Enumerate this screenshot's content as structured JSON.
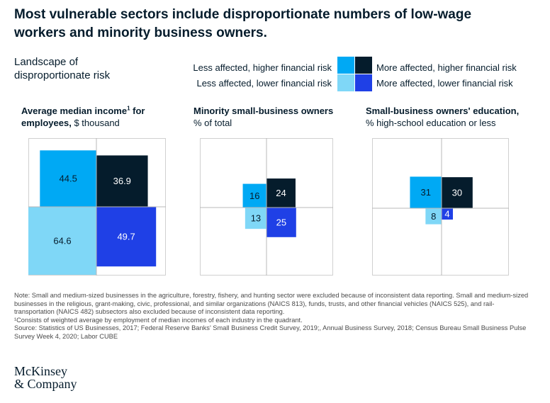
{
  "title": "Most vulnerable sectors include disproportionate numbers of low-wage workers and minority business owners.",
  "landscape_label": "Landscape of disproportionate risk",
  "legend": [
    {
      "label": "Less affected, higher financial risk",
      "color": "#00a9f4"
    },
    {
      "label": "More affected, higher financial risk",
      "color": "#051c2c"
    },
    {
      "label": "Less affected, lower financial risk",
      "color": "#7fd7f7"
    },
    {
      "label": "More affected, lower financial risk",
      "color": "#1f40e6"
    }
  ],
  "panels": [
    {
      "title_bold": "Average median income",
      "footnote_mark": "1",
      "title_bold_tail": " for employees,",
      "title_rest": " $ thousand"
    },
    {
      "title_bold": "Minority small-business owners",
      "subtitle": "% of total"
    },
    {
      "title_bold": "Small-business owners' education,",
      "subtitle": "% high-school education or less"
    }
  ],
  "chart_data": [
    {
      "type": "quadrant",
      "title": "Average median income¹ for employees, $ thousand",
      "quadrants": [
        {
          "name": "Less affected, higher financial risk",
          "value": 44.5,
          "color": "#00a9f4"
        },
        {
          "name": "More affected, higher financial risk",
          "value": 36.9,
          "color": "#051c2c"
        },
        {
          "name": "Less affected, lower financial risk",
          "value": 64.6,
          "color": "#7fd7f7"
        },
        {
          "name": "More affected, lower financial risk",
          "value": 49.7,
          "color": "#1f40e6"
        }
      ]
    },
    {
      "type": "quadrant",
      "title": "Minority small-business owners, % of total",
      "quadrants": [
        {
          "name": "Less affected, higher financial risk",
          "value": 16,
          "color": "#00a9f4"
        },
        {
          "name": "More affected, higher financial risk",
          "value": 24,
          "color": "#051c2c"
        },
        {
          "name": "Less affected, lower financial risk",
          "value": 13,
          "color": "#7fd7f7"
        },
        {
          "name": "More affected, lower financial risk",
          "value": 25,
          "color": "#1f40e6"
        }
      ]
    },
    {
      "type": "quadrant",
      "title": "Small-business owners' education, % high-school education or less",
      "quadrants": [
        {
          "name": "Less affected, higher financial risk",
          "value": 31,
          "color": "#00a9f4"
        },
        {
          "name": "More affected, higher financial risk",
          "value": 30,
          "color": "#051c2c"
        },
        {
          "name": "Less affected, lower financial risk",
          "value": 8,
          "color": "#7fd7f7"
        },
        {
          "name": "More affected, lower financial risk",
          "value": 4,
          "color": "#1f40e6"
        }
      ]
    }
  ],
  "notes": {
    "note": "Note: Small and medium-sized businesses in the agriculture, forestry, fishery, and hunting sector were excluded because of inconsistent data reporting. Small and medium-sized businesses in the religious, grant-making, civic, professional, and similar organizations (NAICS 813), funds, trusts, and other financial vehicles (NAICS 525), and rail-transportation (NAICS 482) subsectors also excluded because of inconsistent data reporting.",
    "footnote": "¹Consists of weighted average by employment of median incomes of each industry in the quadrant.",
    "source": "Source: Statistics of US Businesses, 2017; Federal Reserve Banks' Small Business Credit Survey, 2019;, Annual Business Survey, 2018; Census Bureau Small Business Pulse Survey Week 4, 2020; Labor CUBE"
  },
  "logo": {
    "line1": "McKinsey",
    "line2": "& Company"
  }
}
